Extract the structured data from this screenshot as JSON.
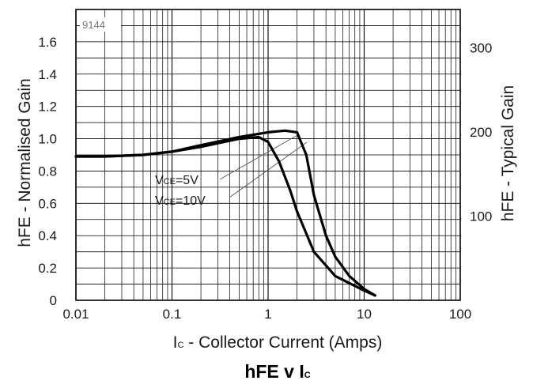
{
  "chart_data": {
    "type": "line",
    "title": "hFE v IC",
    "figure_code": "9144",
    "xlabel": "IC - Collector Current (Amps)",
    "ylabel_left": "hFE - Normalised Gain",
    "ylabel_right": "hFE - Typical Gain",
    "x_scale": "log",
    "xlim": [
      0.01,
      100
    ],
    "ylim": [
      0,
      1.8
    ],
    "x_ticks": [
      "0.01",
      "0.1",
      "1",
      "10",
      "100"
    ],
    "y_ticks_left": [
      "0",
      "0.2",
      "0.4",
      "0.6",
      "0.8",
      "1.0",
      "1.2",
      "1.4",
      "1.6"
    ],
    "y_ticks_right": [
      "100",
      "200",
      "300"
    ],
    "y_right_values": [
      100,
      200,
      300
    ],
    "right_axis_scale": 192,
    "grid": true,
    "series": [
      {
        "name": "VCE=5V",
        "x": [
          0.01,
          0.02,
          0.05,
          0.1,
          0.2,
          0.5,
          1,
          1.5,
          2,
          2.5,
          3,
          4,
          5,
          7,
          10,
          13
        ],
        "y": [
          0.89,
          0.89,
          0.9,
          0.92,
          0.96,
          1.01,
          1.04,
          1.05,
          1.04,
          0.9,
          0.65,
          0.4,
          0.27,
          0.15,
          0.07,
          0.03
        ]
      },
      {
        "name": "VCE=10V",
        "x": [
          0.01,
          0.02,
          0.05,
          0.1,
          0.2,
          0.5,
          0.8,
          1,
          1.3,
          1.7,
          2,
          3,
          5,
          10,
          13
        ],
        "y": [
          0.89,
          0.89,
          0.9,
          0.92,
          0.95,
          1.0,
          1.01,
          0.98,
          0.86,
          0.68,
          0.55,
          0.3,
          0.15,
          0.06,
          0.03
        ]
      }
    ],
    "annotations": [
      {
        "label": "VCE=5V",
        "main": "V",
        "sub": "CE",
        "rest": "=5V"
      },
      {
        "label": "VCE=10V",
        "main": "V",
        "sub": "CE",
        "rest": "=10V"
      }
    ],
    "title_parts": {
      "a": "hFE v I",
      "b": "C"
    },
    "xlabel_parts": {
      "a": "I",
      "b": "C",
      "c": " - Collector Current (Amps)"
    },
    "line_color": "#000000",
    "grid_color": "#000000"
  }
}
